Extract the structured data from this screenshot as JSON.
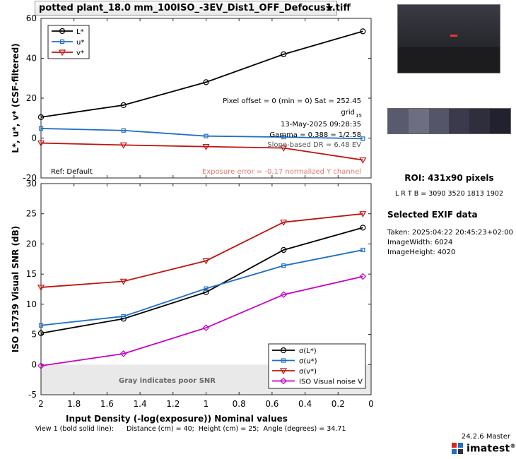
{
  "file_select": {
    "value": "potted plant_18.0 mm_100ISO_-3EV_Dist1_OFF_Defocus1.tiff"
  },
  "chart_data": [
    {
      "type": "line",
      "ylabel": "L*, u*, v* (CSF-filtered)",
      "xlim": [
        2,
        0
      ],
      "ylim": [
        -20,
        60
      ],
      "yticks": [
        -20,
        0,
        20,
        40,
        60
      ],
      "x": [
        2,
        1.5,
        1,
        0.53,
        0.05
      ],
      "series": [
        {
          "name": "L*",
          "color": "#000000",
          "marker": "circle",
          "values": [
            10.5,
            16.5,
            28,
            42,
            53.5
          ]
        },
        {
          "name": "u*",
          "color": "#1f6fc5",
          "marker": "square",
          "values": [
            4.8,
            3.8,
            1,
            0.5,
            -0.3
          ]
        },
        {
          "name": "v*",
          "color": "#c0150f",
          "marker": "triangle-down",
          "values": [
            -2.5,
            -3.5,
            -4.3,
            -5,
            -11
          ]
        }
      ],
      "legend": "top-left",
      "annotations": {
        "pixel_offset": "Pixel offset = 0  (min = 0)  Sat = 252.45",
        "grid": "grid",
        "grid_sub": "15",
        "date": "13-May-2025 09:28:35",
        "gamma": "Gamma = 0.388 = 1/2.58",
        "dr": "Slope-based DR = 6.48 EV",
        "ref": "Ref: Default",
        "exposure_error": "Exposure error = -0.17 normalized Y channel"
      },
      "colors": {
        "dr": "#555555",
        "exposure_error": "#e07b73"
      }
    },
    {
      "type": "line",
      "xlabel": "Input Density (-log(exposure))    Nominal values",
      "ylabel": "ISO 15739 Visual SNR (dB)",
      "xlim": [
        2,
        0
      ],
      "ylim": [
        -5,
        30
      ],
      "xticks": [
        2,
        1.8,
        1.6,
        1.4,
        1.2,
        1,
        0.8,
        0.6,
        0.4,
        0.2,
        0
      ],
      "yticks": [
        -5,
        0,
        5,
        10,
        15,
        20,
        25,
        30
      ],
      "x": [
        2,
        1.5,
        1,
        0.53,
        0.05
      ],
      "series": [
        {
          "name": "σ(L*)",
          "color": "#000000",
          "marker": "circle",
          "values": [
            5.2,
            7.6,
            12,
            19,
            22.7
          ]
        },
        {
          "name": "σ(u*)",
          "color": "#1f6fc5",
          "marker": "square",
          "values": [
            6.5,
            8,
            12.6,
            16.4,
            19
          ]
        },
        {
          "name": "σ(v*)",
          "color": "#c0150f",
          "marker": "triangle-down",
          "values": [
            12.8,
            13.8,
            17.2,
            23.6,
            25
          ]
        },
        {
          "name": "ISO Visual noise V",
          "color": "#c800c8",
          "marker": "diamond",
          "values": [
            -0.2,
            1.8,
            6.1,
            11.6,
            14.6
          ]
        }
      ],
      "legend": "bottom-right",
      "poor_region": {
        "ymin": -5,
        "ymax": 0,
        "label": "Gray indicates poor SNR"
      }
    }
  ],
  "roi": {
    "title": "ROI:  431x90 pixels",
    "coords": "L R  T B = 3090 3520  1813 1902"
  },
  "exif": {
    "title": "Selected EXIF data",
    "lines": [
      "Taken: 2025:04:22 20:45:23+02:00",
      "ImageWidth:  6024",
      "ImageHeight:  4020"
    ]
  },
  "footer": {
    "view_line": "View 1 (bold solid line):      Distance (cm) = 40;  Height (cm) = 25;  Angle (degrees) = 34.71",
    "version": "24.2.6 Master",
    "brand": "imatest",
    "reg": "®"
  },
  "strip_colors": [
    "#5a5a6e",
    "#6e6e82",
    "#55556a",
    "#3a3a4c",
    "#2e2e3c",
    "#22222e"
  ]
}
